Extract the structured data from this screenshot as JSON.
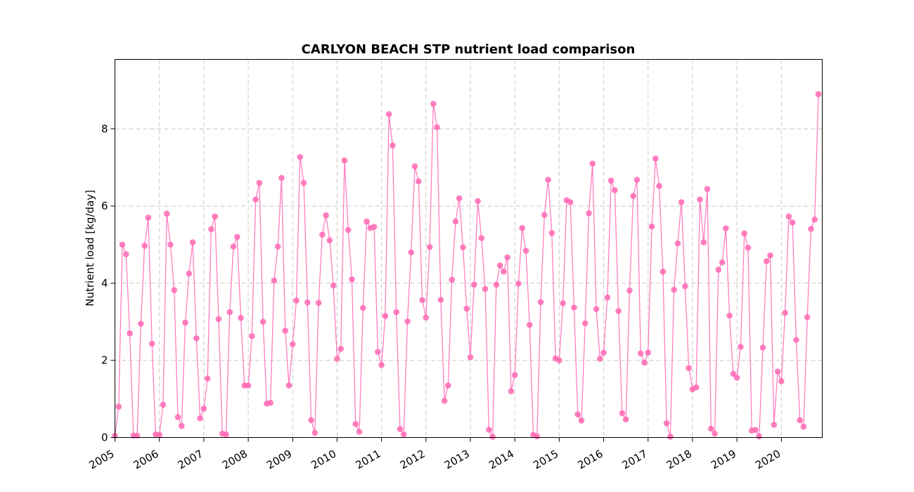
{
  "chart_data": {
    "type": "line",
    "title": "CARLYON BEACH STP nutrient load comparison",
    "xlabel": "",
    "ylabel": "Nutrient load [kg/day]",
    "xlim": [
      2005.0,
      2020.92
    ],
    "ylim": [
      0,
      9.8
    ],
    "yticks": [
      0,
      2,
      4,
      6,
      8
    ],
    "xtick_labels": [
      "2005",
      "2006",
      "2007",
      "2008",
      "2009",
      "2010",
      "2011",
      "2012",
      "2013",
      "2014",
      "2015",
      "2016",
      "2017",
      "2018",
      "2019",
      "2020"
    ],
    "grid": true,
    "marker_color": "#ff69b4",
    "series": [
      {
        "x_start": "2005-01",
        "x_step_months": 1,
        "values": [
          0.05,
          0.8,
          5.0,
          4.75,
          2.7,
          0.05,
          0.05,
          2.95,
          4.97,
          5.7,
          2.43,
          0.08,
          0.07,
          0.85,
          5.8,
          5.0,
          3.82,
          0.53,
          0.3,
          2.98,
          4.25,
          5.06,
          2.57,
          0.5,
          0.75,
          1.53,
          5.4,
          5.73,
          3.07,
          0.1,
          0.08,
          3.25,
          4.95,
          5.2,
          3.1,
          1.35,
          1.35,
          2.63,
          6.17,
          6.6,
          3.0,
          0.88,
          0.9,
          4.07,
          4.95,
          6.73,
          2.77,
          1.35,
          2.42,
          3.55,
          7.27,
          6.6,
          3.5,
          0.45,
          0.12,
          3.49,
          5.26,
          5.76,
          5.11,
          3.94,
          2.04,
          2.3,
          7.18,
          5.38,
          4.1,
          0.35,
          0.15,
          3.36,
          5.6,
          5.43,
          5.46,
          2.22,
          1.88,
          3.15,
          8.38,
          7.57,
          3.25,
          0.22,
          0.08,
          3.01,
          4.8,
          7.03,
          6.64,
          3.56,
          3.11,
          4.94,
          8.65,
          8.04,
          3.57,
          0.95,
          1.35,
          4.09,
          5.6,
          6.2,
          4.93,
          3.34,
          2.08,
          3.96,
          6.13,
          5.17,
          3.85,
          0.2,
          0.02,
          3.96,
          4.46,
          4.3,
          4.67,
          1.2,
          1.62,
          3.99,
          5.43,
          4.84,
          2.92,
          0.07,
          0.03,
          3.51,
          5.77,
          6.68,
          5.3,
          2.05,
          2.0,
          3.48,
          6.15,
          6.1,
          3.37,
          0.6,
          0.44,
          2.96,
          5.81,
          7.1,
          3.33,
          2.04,
          2.2,
          3.63,
          6.66,
          6.41,
          3.28,
          0.63,
          0.47,
          3.81,
          6.26,
          6.68,
          2.18,
          1.94,
          2.2,
          5.47,
          7.23,
          6.52,
          4.3,
          0.37,
          0.02,
          3.83,
          5.03,
          6.1,
          3.92,
          1.8,
          1.25,
          1.3,
          6.17,
          5.06,
          6.44,
          0.23,
          0.1,
          4.35,
          4.54,
          5.42,
          3.16,
          1.65,
          1.55,
          2.35,
          5.29,
          4.92,
          0.18,
          0.2,
          0.03,
          2.33,
          4.57,
          4.72,
          0.33,
          1.71,
          1.46,
          3.23,
          5.73,
          5.57,
          2.53,
          0.45,
          0.28,
          3.12,
          5.41,
          5.65,
          8.9
        ]
      }
    ]
  }
}
